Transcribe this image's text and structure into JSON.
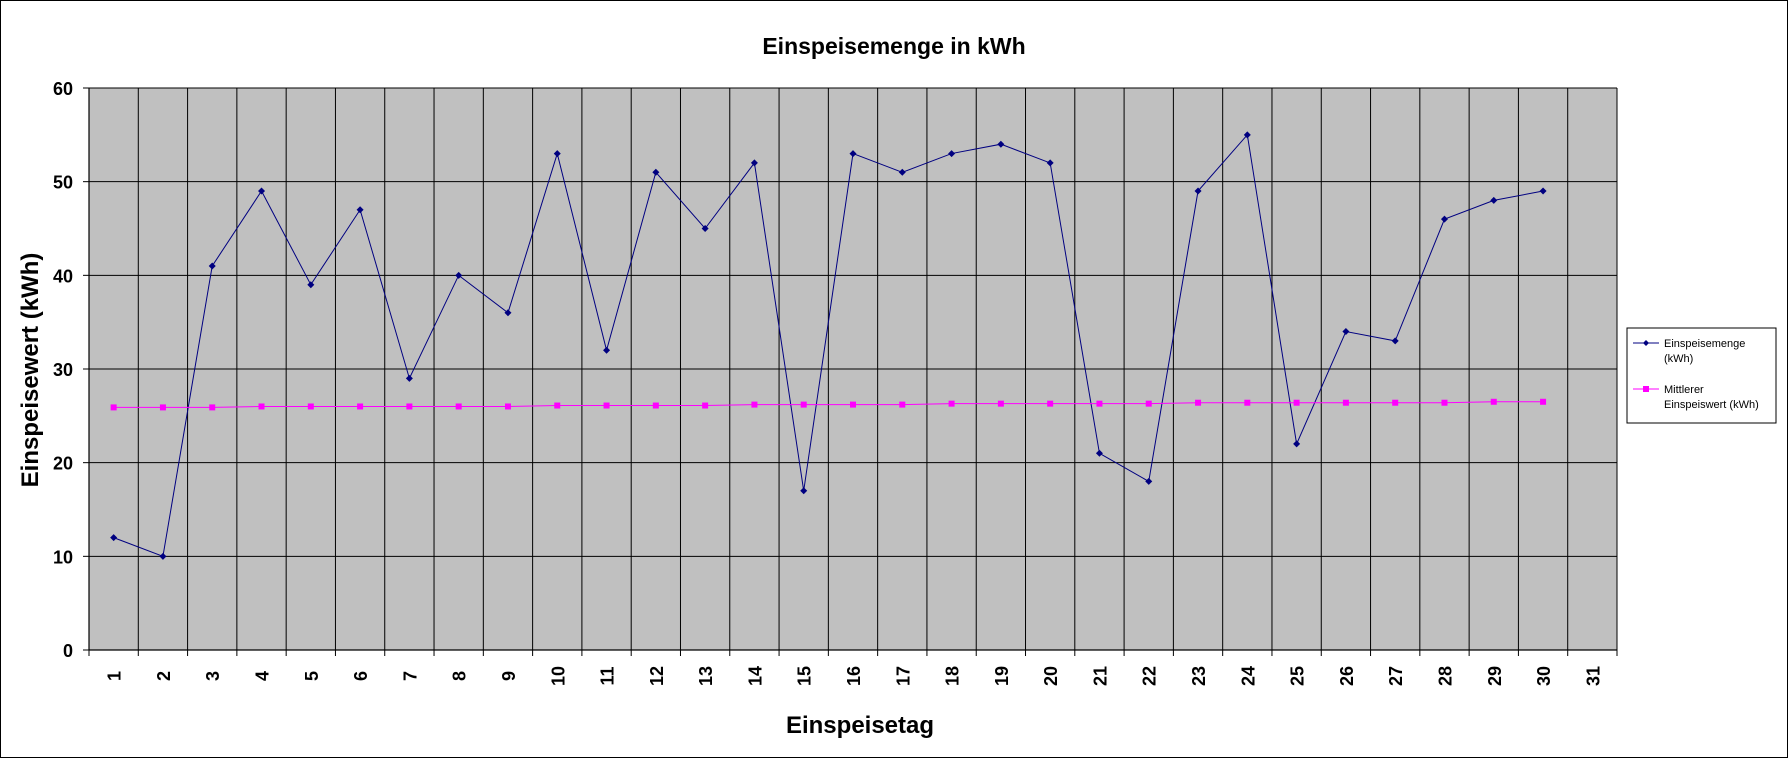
{
  "chart_data": {
    "type": "line",
    "title": "Einspeisemenge in kWh",
    "xlabel": "Einspeisetag",
    "ylabel": "Einspeisewert  (kWh)",
    "categories": [
      "1",
      "2",
      "3",
      "4",
      "5",
      "6",
      "7",
      "8",
      "9",
      "10",
      "11",
      "12",
      "13",
      "14",
      "15",
      "16",
      "17",
      "18",
      "19",
      "20",
      "21",
      "22",
      "23",
      "24",
      "25",
      "26",
      "27",
      "28",
      "29",
      "30",
      "31"
    ],
    "ylim": [
      0,
      60
    ],
    "yticks": [
      "0",
      "10",
      "20",
      "30",
      "40",
      "50",
      "60"
    ],
    "grid": true,
    "legend_position": "right",
    "plot_background": "#c0c0c0",
    "series": [
      {
        "name": "Einspeisemenge (kWh)",
        "legend_lines": [
          "Einspeisemenge",
          "(kWh)"
        ],
        "color": "#000080",
        "marker": "diamond",
        "values": [
          12,
          10,
          41,
          49,
          39,
          47,
          29,
          40,
          36,
          53,
          32,
          51,
          45,
          52,
          17,
          53,
          51,
          53,
          54,
          52,
          21,
          18,
          49,
          55,
          22,
          34,
          33,
          46,
          48,
          49,
          null
        ]
      },
      {
        "name": "Mittlerer Einspeiswert (kWh)",
        "legend_lines": [
          "Mittlerer",
          "Einspeiswert (kWh)"
        ],
        "color": "#ff00ff",
        "marker": "square",
        "values": [
          25.9,
          25.9,
          25.9,
          26.0,
          26.0,
          26.0,
          26.0,
          26.0,
          26.0,
          26.1,
          26.1,
          26.1,
          26.1,
          26.2,
          26.2,
          26.2,
          26.2,
          26.3,
          26.3,
          26.3,
          26.3,
          26.3,
          26.4,
          26.4,
          26.4,
          26.4,
          26.4,
          26.4,
          26.5,
          26.5,
          null
        ]
      }
    ]
  }
}
